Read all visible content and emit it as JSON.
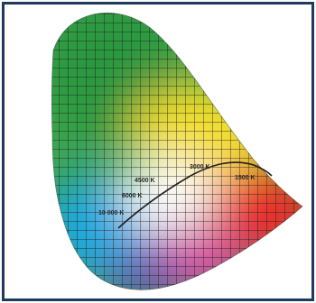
{
  "diagram": {
    "temperature_labels": {
      "k10000": "10 000 K",
      "k6000": "6000 K",
      "k4500": "4500 K",
      "k3000": "3000 K",
      "k1500": "1500 K"
    },
    "colors": {
      "frame": "#1f3b5c",
      "grid": "#1a1a1a",
      "locus": "#202020",
      "green": "#2f9b3e",
      "yellow": "#f4de2a",
      "red": "#ea2f2c",
      "blue": "#1fa8de",
      "magenta": "#de4aa7",
      "white": "#ffffff"
    }
  }
}
